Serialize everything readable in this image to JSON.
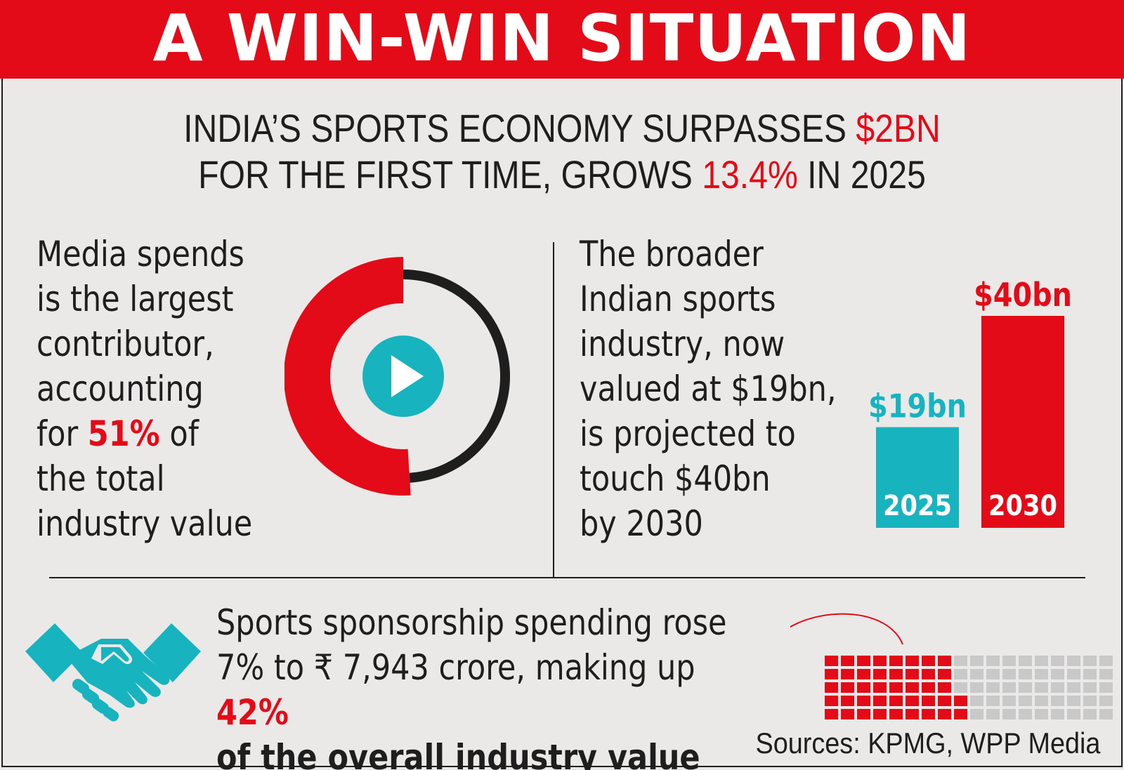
{
  "title": "A WIN-WIN SITUATION",
  "headline": {
    "l1_pre": "INDIA’S SPORTS ECONOMY SURPASSES ",
    "l1_hl": "$2BN",
    "l2_pre": "FOR THE FIRST TIME, GROWS ",
    "l2_hl": "13.4%",
    "l2_post": " IN 2025"
  },
  "media": {
    "l1": "Media spends",
    "l2": "is the largest",
    "l3": "contributor,",
    "l4": "accounting",
    "l5_pre": "for ",
    "l5_hl": "51%",
    "l5_post": " of",
    "l6": "the total",
    "l7": "industry value",
    "share_percent": 51,
    "play_icon": "play-icon"
  },
  "industry": {
    "l1": "The broader",
    "l2": "Indian sports",
    "l3": "industry, now",
    "l4": "valued at $19bn,",
    "l5": "is projected to",
    "l6": "touch $40bn",
    "l7": "by 2030"
  },
  "sponsorship": {
    "l1": "Sports sponsorship spending rose",
    "l2_pre": "7% to ₹ 7,943 crore, making up ",
    "l2_hl": "42%",
    "l3": "of the overall industry value",
    "share_percent": 42
  },
  "icons": {
    "handshake": "handshake-icon",
    "play": "play-icon"
  },
  "sources": "Sources: KPMG, WPP Media",
  "colors": {
    "red": "#e20b17",
    "teal": "#17b4c0",
    "dark": "#1e1e1e",
    "background": "#ebe9e8",
    "grey_cell": "#c9c9c9"
  },
  "chart_data": [
    {
      "type": "pie",
      "title": "",
      "slices": [
        {
          "label": "Media spends",
          "value": 51
        },
        {
          "label": "",
          "value": 49
        }
      ],
      "colors": [
        "#e20b17",
        "#1e1e1e"
      ]
    },
    {
      "type": "bar",
      "title": "",
      "categories": [
        "2025",
        "2030"
      ],
      "values": [
        19,
        40
      ],
      "value_labels": [
        "$19bn",
        "$40bn"
      ],
      "units": "$bn",
      "ylim": [
        0,
        40
      ],
      "colors": [
        "#17b4c0",
        "#e20b17"
      ],
      "grid": false
    },
    {
      "type": "heatmap",
      "title": "",
      "rows": 5,
      "columns": 20,
      "highlighted_percent": 42,
      "colors": [
        "#e20b17",
        "#c9c9c9"
      ]
    }
  ]
}
